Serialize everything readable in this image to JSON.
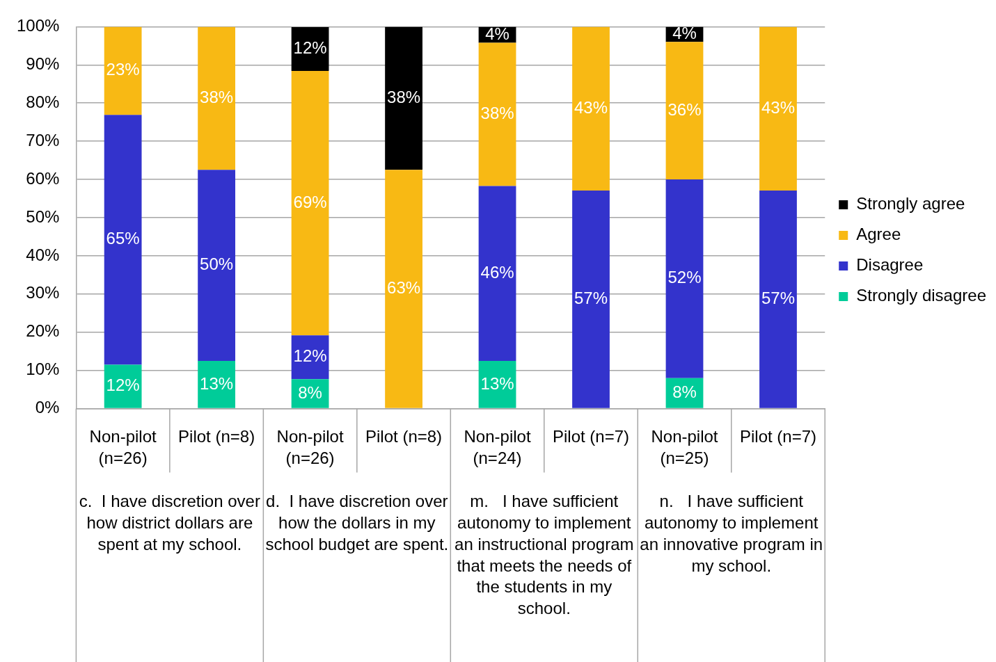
{
  "chart_data": {
    "type": "bar",
    "stacked": true,
    "categories": [
      "Non-pilot (n=26)",
      "Pilot (n=8)",
      "Non-pilot (n=26)",
      "Pilot (n=8)",
      "Non-pilot (n=24)",
      "Pilot (n=7)",
      "Non-pilot (n=25)",
      "Pilot (n=7)"
    ],
    "series": [
      {
        "name": "Strongly disagree",
        "color": "#00cc99",
        "values": [
          11.5,
          12.5,
          7.7,
          null,
          12.5,
          null,
          8,
          null
        ],
        "value_labels": [
          "12%",
          "13%",
          "8%",
          null,
          "13%",
          null,
          "8%",
          null
        ]
      },
      {
        "name": "Disagree",
        "color": "#3333cc",
        "values": [
          65.4,
          50,
          11.5,
          null,
          45.8,
          57.1,
          52,
          57.1
        ],
        "value_labels": [
          "65%",
          "50%",
          "12%",
          null,
          "46%",
          "57%",
          "52%",
          "57%"
        ]
      },
      {
        "name": "Agree",
        "color": "#f8b914",
        "values": [
          23.1,
          37.5,
          69.2,
          62.5,
          37.5,
          42.9,
          36,
          42.9
        ],
        "value_labels": [
          "23%",
          "38%",
          "69%",
          "63%",
          "38%",
          "43%",
          "36%",
          "43%"
        ]
      },
      {
        "name": "Strongly agree",
        "color": "#000000",
        "values": [
          null,
          null,
          11.5,
          37.5,
          4.2,
          null,
          4,
          null
        ],
        "value_labels": [
          null,
          null,
          "12%",
          "38%",
          "4%",
          null,
          "4%",
          null
        ]
      }
    ],
    "ylim": [
      0,
      100
    ],
    "yticks": [
      {
        "value": 0,
        "label": "0%"
      },
      {
        "value": 10,
        "label": "10%"
      },
      {
        "value": 20,
        "label": "20%"
      },
      {
        "value": 30,
        "label": "30%"
      },
      {
        "value": 40,
        "label": "40%"
      },
      {
        "value": 50,
        "label": "50%"
      },
      {
        "value": 60,
        "label": "60%"
      },
      {
        "value": 70,
        "label": "70%"
      },
      {
        "value": 80,
        "label": "80%"
      },
      {
        "value": 90,
        "label": "90%"
      },
      {
        "value": 100,
        "label": "100%"
      }
    ],
    "grid": "y",
    "legend": "right",
    "annotations": [
      "c.  I have discretion over how district dollars are spent at my school.",
      "d.  I have discretion over how the dollars in my school budget are spent.",
      "m.   I have sufficient autonomy to implement an instructional program that meets the needs of the students in my school.",
      "n.   I have sufficient autonomy to implement an innovative program in my school."
    ]
  }
}
